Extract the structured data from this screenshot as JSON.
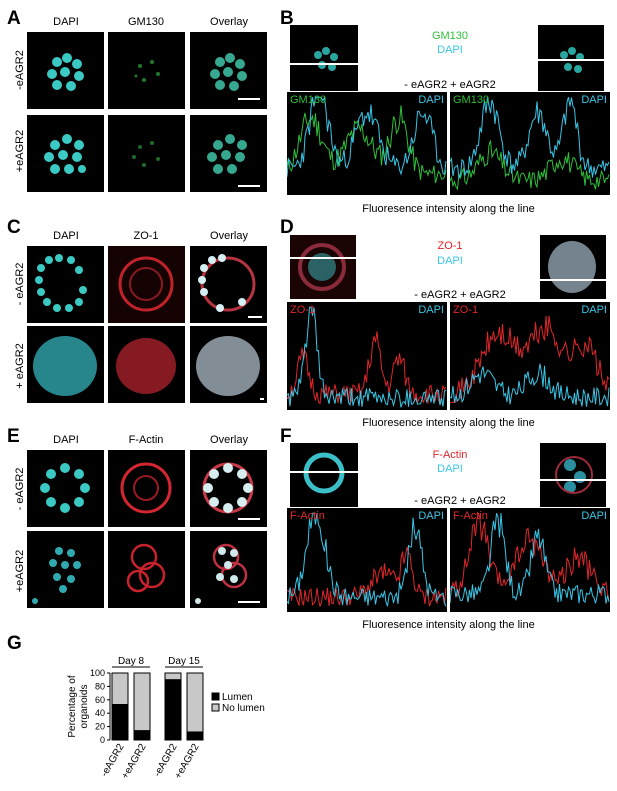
{
  "panels": {
    "A": {
      "letter": "A",
      "cols": [
        "DAPI",
        "GM130",
        "Overlay"
      ],
      "rows": [
        "-eAGR2",
        "+eAGR2"
      ]
    },
    "B": {
      "letter": "B",
      "legend_top": "GM130",
      "legend_bottom": "DAPI",
      "conditions": "- eAGR2  + eAGR2",
      "left_label": "GM130",
      "right_label": "DAPI",
      "left_label2": "GM130",
      "right_label2": "DAPI",
      "caption": "Fluoresence intensity along the line"
    },
    "C": {
      "letter": "C",
      "cols": [
        "DAPI",
        "ZO-1",
        "Overlay"
      ],
      "rows": [
        "- eAGR2",
        "+ eAGR2"
      ]
    },
    "D": {
      "letter": "D",
      "legend_top": "ZO-1",
      "legend_bottom": "DAPI",
      "conditions": "- eAGR2  + eAGR2",
      "left_label": "ZO-1",
      "right_label": "DAPI",
      "left_label2": "ZO-1",
      "right_label2": "DAPI",
      "caption": "Fluoresence intensity along the line"
    },
    "E": {
      "letter": "E",
      "cols": [
        "DAPI",
        "F-Actin",
        "Overlay"
      ],
      "rows": [
        "- eAGR2",
        "+eAGR2"
      ]
    },
    "F": {
      "letter": "F",
      "legend_top": "F-Actin",
      "legend_bottom": "DAPI",
      "conditions": "- eAGR2 + eAGR2",
      "left_label": "F-Actin",
      "right_label": "DAPI",
      "left_label2": "F-Actin",
      "right_label2": "DAPI",
      "caption": "Fluoresence intensity along the line"
    },
    "G": {
      "letter": "G"
    }
  },
  "colors": {
    "green": "#2fbf3a",
    "cyan": "#39c6e6",
    "red": "#e0262a",
    "lumen": "#000000",
    "nolumen": "#c8c8c8"
  },
  "chart_data": {
    "type": "bar",
    "stacked": true,
    "ylabel": "Percentage of organoids",
    "ylim": [
      0,
      100
    ],
    "yticks": [
      0,
      20,
      40,
      60,
      80,
      100
    ],
    "groups": [
      "Day 8",
      "Day 15"
    ],
    "categories": [
      "-eAGR2",
      "+eAGR2",
      "-eAGR2",
      "+eAGR2"
    ],
    "series": [
      {
        "name": "Lumen",
        "values": [
          53,
          14,
          90,
          12
        ]
      },
      {
        "name": "No lumen",
        "values": [
          47,
          86,
          10,
          88
        ]
      }
    ],
    "legend": "right"
  }
}
